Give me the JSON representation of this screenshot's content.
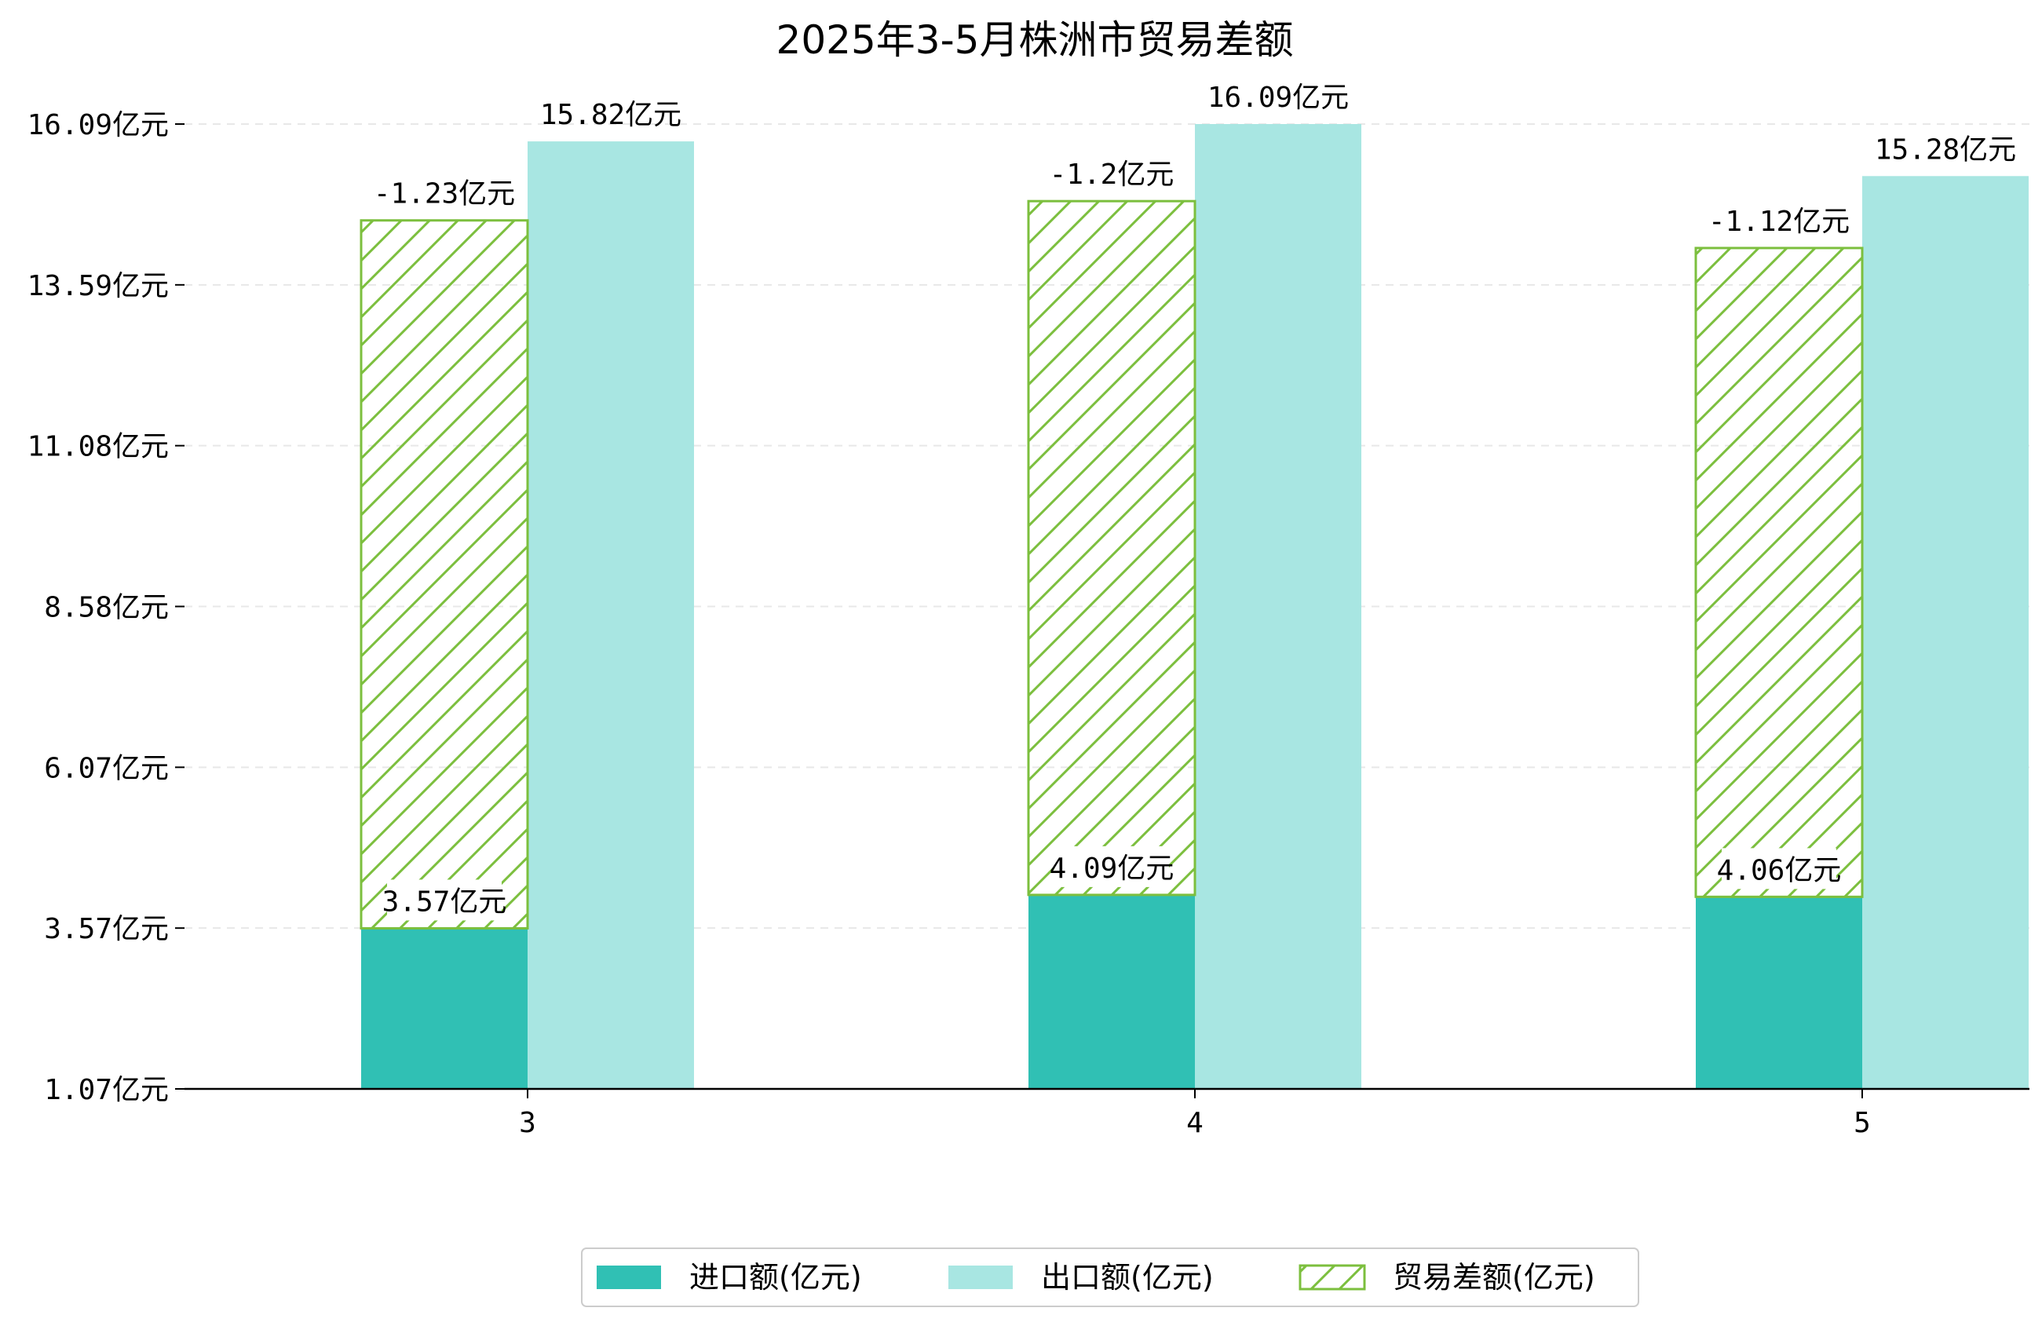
{
  "chart_data": {
    "type": "bar",
    "title": "2025年3-5月株洲市贸易差额",
    "categories": [
      "3",
      "4",
      "5"
    ],
    "unit_suffix": "亿元",
    "yticks": [
      "1.07亿元",
      "3.57亿元",
      "6.07亿元",
      "8.58亿元",
      "11.08亿元",
      "13.59亿元",
      "16.09亿元"
    ],
    "ylim": [
      1.07,
      16.09
    ],
    "series": [
      {
        "name": "进口额(亿元)",
        "values": [
          3.57,
          4.09,
          4.06
        ],
        "labels": [
          "3.57亿元",
          "4.09亿元",
          "4.06亿元"
        ],
        "color": "#30c0b4"
      },
      {
        "name": "出口额(亿元)",
        "values": [
          15.82,
          16.09,
          15.28
        ],
        "labels": [
          "15.82亿元",
          "16.09亿元",
          "15.28亿元"
        ],
        "color": "#a8e6e2"
      },
      {
        "name": "贸易差额(亿元)",
        "values": [
          -1.23,
          -1.2,
          -1.12
        ],
        "labels": [
          "-1.23亿元",
          "-1.2亿元",
          "-1.12亿元"
        ],
        "color": "#7cbf3e",
        "pattern": "hatch"
      }
    ],
    "grid": true,
    "legend_position": "bottom"
  }
}
